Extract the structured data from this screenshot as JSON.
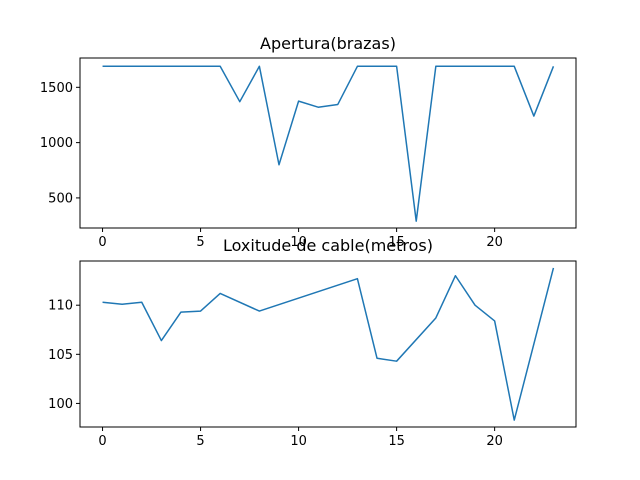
{
  "chart_data": [
    {
      "type": "line",
      "title": "Apertura(brazas)",
      "xlabel": "",
      "ylabel": "",
      "xlim": [
        -1.15,
        24.15
      ],
      "ylim": [
        228,
        1765
      ],
      "xticks": [
        0,
        5,
        10,
        15,
        20
      ],
      "yticks": [
        500,
        1000,
        1500
      ],
      "grid": false,
      "color": "#1f77b4",
      "x": [
        0,
        1,
        2,
        3,
        4,
        5,
        6,
        7,
        8,
        9,
        10,
        11,
        12,
        13,
        14,
        15,
        16,
        17,
        18,
        19,
        20,
        21,
        22,
        23
      ],
      "y": [
        1690,
        1690,
        1690,
        1690,
        1690,
        1690,
        1690,
        1370,
        1690,
        800,
        1375,
        1320,
        1345,
        1690,
        1690,
        1690,
        290,
        1690,
        1690,
        1690,
        1690,
        1690,
        1240,
        1690
      ]
    },
    {
      "type": "line",
      "title": "Loxitude de cable(metros)",
      "xlabel": "",
      "ylabel": "",
      "xlim": [
        -1.15,
        24.15
      ],
      "ylim": [
        97.6,
        114.5
      ],
      "xticks": [
        0,
        5,
        10,
        15,
        20
      ],
      "yticks": [
        100,
        105,
        110
      ],
      "grid": false,
      "color": "#1f77b4",
      "x": [
        0,
        1,
        2,
        3,
        4,
        5,
        6,
        8,
        13,
        14,
        15,
        17,
        18,
        19,
        20,
        21,
        23
      ],
      "y": [
        110.3,
        110.1,
        110.3,
        106.4,
        109.3,
        109.4,
        111.2,
        109.4,
        112.7,
        104.6,
        104.3,
        108.7,
        113.0,
        110.0,
        108.4,
        98.3,
        113.8
      ]
    }
  ]
}
